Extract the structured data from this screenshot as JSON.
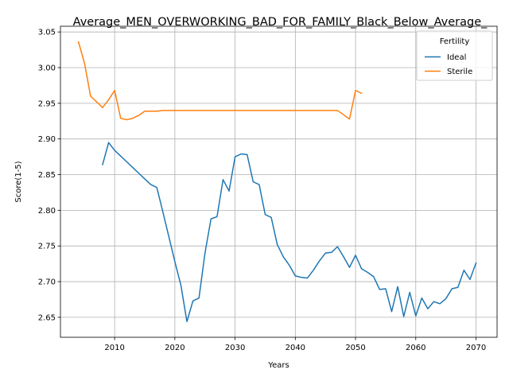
{
  "chart_data": {
    "type": "line",
    "title": "Average_MEN_OVERWORKING_BAD_FOR_FAMILY_Black_Below_Average_",
    "xlabel": "Years",
    "ylabel": "Score(1-5)",
    "xlim": [
      2001,
      2073.5
    ],
    "ylim": [
      2.622,
      3.058
    ],
    "xticks": [
      2010,
      2020,
      2030,
      2040,
      2050,
      2060,
      2070
    ],
    "yticks": [
      2.65,
      2.7,
      2.75,
      2.8,
      2.85,
      2.9,
      2.95,
      3.0,
      3.05
    ],
    "ytick_labels": [
      "2.65",
      "2.70",
      "2.75",
      "2.80",
      "2.85",
      "2.90",
      "2.95",
      "3.00",
      "3.05"
    ],
    "grid": true,
    "legend": {
      "title": "Fertility",
      "placement": "top-right"
    },
    "series": [
      {
        "name": "Ideal",
        "color": "#1f77b4",
        "x": [
          2008,
          2009,
          2010,
          2011,
          2012,
          2013,
          2014,
          2015,
          2016,
          2017,
          2018,
          2019,
          2020,
          2021,
          2022,
          2023,
          2024,
          2025,
          2026,
          2027,
          2028,
          2029,
          2030,
          2031,
          2032,
          2033,
          2034,
          2035,
          2036,
          2037,
          2038,
          2039,
          2040,
          2041,
          2042,
          2043,
          2044,
          2045,
          2046,
          2047,
          2048,
          2049,
          2050,
          2051,
          2052,
          2053,
          2054,
          2055,
          2056,
          2057,
          2058,
          2059,
          2060,
          2061,
          2062,
          2063,
          2064,
          2065,
          2066,
          2067,
          2068,
          2069,
          2070
        ],
        "y": [
          2.864,
          2.895,
          2.884,
          2.876,
          2.868,
          2.86,
          2.852,
          2.844,
          2.836,
          2.832,
          2.798,
          2.763,
          2.728,
          2.695,
          2.644,
          2.673,
          2.677,
          2.74,
          2.788,
          2.791,
          2.843,
          2.827,
          2.875,
          2.879,
          2.878,
          2.84,
          2.836,
          2.794,
          2.79,
          2.752,
          2.735,
          2.723,
          2.708,
          2.706,
          2.705,
          2.716,
          2.729,
          2.74,
          2.741,
          2.749,
          2.735,
          2.72,
          2.737,
          2.718,
          2.713,
          2.707,
          2.689,
          2.69,
          2.658,
          2.693,
          2.651,
          2.685,
          2.652,
          2.677,
          2.662,
          2.672,
          2.669,
          2.676,
          2.69,
          2.692,
          2.716,
          2.703,
          2.726
        ]
      },
      {
        "name": "Sterile",
        "color": "#ff7f0e",
        "x": [
          2004,
          2005,
          2006,
          2007,
          2008,
          2009,
          2010,
          2011,
          2012,
          2013,
          2014,
          2015,
          2016,
          2017,
          2018,
          2019,
          2020,
          2021,
          2022,
          2023,
          2024,
          2025,
          2026,
          2027,
          2028,
          2029,
          2030,
          2031,
          2032,
          2033,
          2034,
          2035,
          2036,
          2037,
          2038,
          2039,
          2040,
          2041,
          2042,
          2043,
          2044,
          2045,
          2046,
          2047,
          2048,
          2049,
          2050,
          2051
        ],
        "y": [
          3.036,
          3.006,
          2.96,
          2.952,
          2.944,
          2.955,
          2.968,
          2.929,
          2.927,
          2.929,
          2.933,
          2.939,
          2.939,
          2.939,
          2.94,
          2.94,
          2.94,
          2.94,
          2.94,
          2.94,
          2.94,
          2.94,
          2.94,
          2.94,
          2.94,
          2.94,
          2.94,
          2.94,
          2.94,
          2.94,
          2.94,
          2.94,
          2.94,
          2.94,
          2.94,
          2.94,
          2.94,
          2.94,
          2.94,
          2.94,
          2.94,
          2.94,
          2.94,
          2.94,
          2.934,
          2.928,
          2.968,
          2.964
        ]
      }
    ]
  }
}
